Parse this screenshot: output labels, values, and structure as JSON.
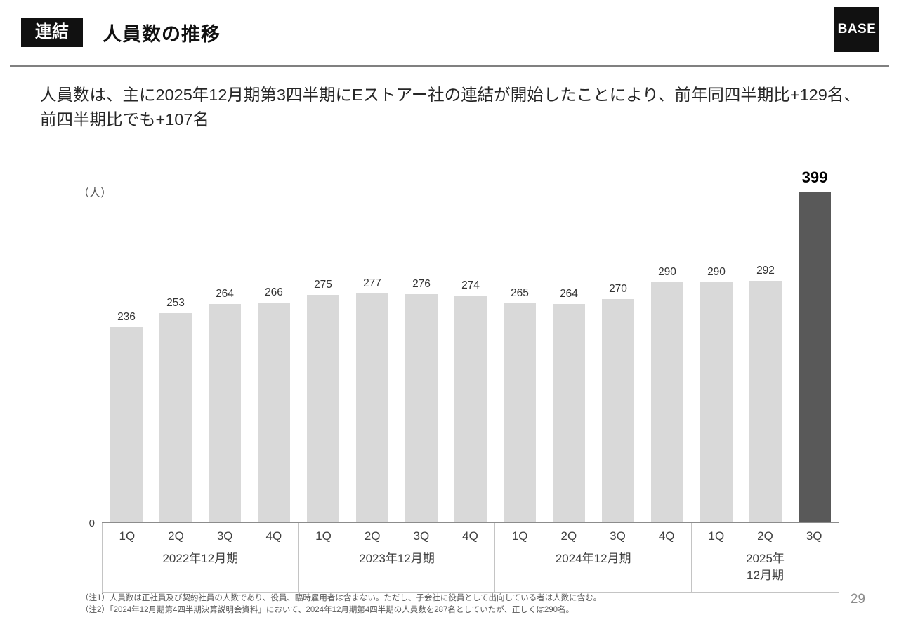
{
  "header": {
    "badge": "連結",
    "title": "人員数の推移",
    "logo": "BASE"
  },
  "lead": "人員数は、主に2025年12月期第3四半期にEストアー社の連結が開始したことにより、前年同四半期比+129名、前四半期比でも+107名",
  "chart_data": {
    "type": "bar",
    "title": "人員数の推移",
    "unit_label": "（人）",
    "y_zero_label": "0",
    "ylim": [
      0,
      399
    ],
    "categories": [
      "1Q",
      "2Q",
      "3Q",
      "4Q",
      "1Q",
      "2Q",
      "3Q",
      "4Q",
      "1Q",
      "2Q",
      "3Q",
      "4Q",
      "1Q",
      "2Q",
      "3Q"
    ],
    "values": [
      236,
      253,
      264,
      266,
      275,
      277,
      276,
      274,
      265,
      264,
      270,
      290,
      290,
      292,
      399
    ],
    "groups": [
      {
        "label": "2022年12月期",
        "quarters": 4
      },
      {
        "label": "2023年12月期",
        "quarters": 4
      },
      {
        "label": "2024年12月期",
        "quarters": 4
      },
      {
        "label": "2025年\n12月期",
        "quarters": 3
      }
    ],
    "highlight_index": 14,
    "bar_color": "#d9d9d9",
    "highlight_color": "#595959",
    "grid": false,
    "legend": false
  },
  "notes": [
    "（注1）人員数は正社員及び契約社員の人数であり、役員、臨時雇用者は含まない。ただし、子会社に役員として出向している者は人数に含む。",
    "（注2）「2024年12月期第4四半期決算説明会資料」において、2024年12月期第4四半期の人員数を287名としていたが、正しくは290名。"
  ],
  "page_number": "29"
}
